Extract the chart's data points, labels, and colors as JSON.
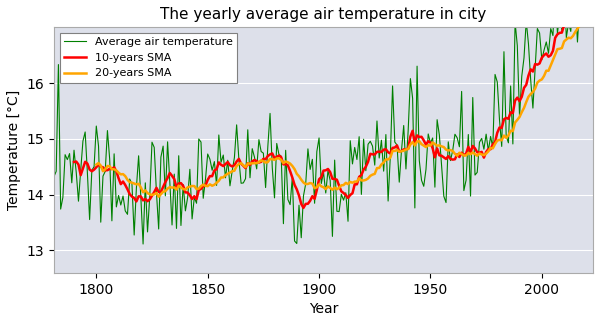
{
  "title": "The yearly average air temperature in city",
  "xlabel": "Year",
  "ylabel": "Temperature [°C]",
  "year_start": 1781,
  "year_end": 2022,
  "base_temp": 14.15,
  "sma10_window": 10,
  "sma20_window": 20,
  "color_temp": "#008000",
  "color_sma10": "#ff0000",
  "color_sma20": "#ffa500",
  "legend_labels": [
    "Average air temperature",
    "10-years SMA",
    "20-years SMA"
  ],
  "ylim": [
    12.6,
    17.0
  ],
  "yticks": [
    13,
    14,
    15,
    16
  ],
  "xlim": [
    1781,
    2023
  ],
  "bg_color": "#dde0ea",
  "fig_facecolor": "#ffffff",
  "figsize": [
    6.0,
    3.23
  ],
  "dpi": 100,
  "seed": 137,
  "noise_scale": 0.52
}
